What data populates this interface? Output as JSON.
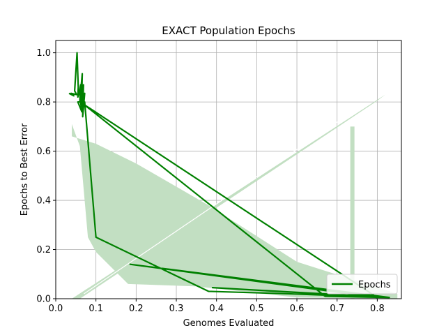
{
  "chart_data": {
    "type": "line",
    "title": "EXACT Population Epochs",
    "xlabel": "Genomes Evaluated",
    "ylabel": "Epochs to Best Error",
    "xlim": [
      0.0,
      0.86
    ],
    "ylim": [
      0.0,
      1.05
    ],
    "xticks": [
      "0.0",
      "0.1",
      "0.2",
      "0.3",
      "0.4",
      "0.5",
      "0.6",
      "0.7",
      "0.8"
    ],
    "yticks": [
      "0.0",
      "0.2",
      "0.4",
      "0.6",
      "0.8",
      "1.0"
    ],
    "grid": true,
    "legend": {
      "placement": "lower-right",
      "entries": [
        "Epochs"
      ]
    },
    "colors": {
      "line": "#008000",
      "band": "#c2dfc2",
      "grid": "#b0b0b0"
    },
    "series": [
      {
        "name": "Epochs",
        "x": [
          0.033,
          0.045,
          0.038,
          0.052,
          0.047,
          0.053,
          0.056,
          0.055,
          0.058,
          0.062,
          0.06,
          0.066,
          0.064,
          0.069,
          0.067,
          0.072,
          0.066,
          0.07,
          0.06,
          0.065,
          0.055,
          0.072,
          0.1,
          0.38,
          0.58,
          0.82,
          0.39,
          0.83,
          0.185,
          0.8,
          0.07,
          0.67,
          0.83
        ],
        "y": [
          0.835,
          0.825,
          0.835,
          0.83,
          0.845,
          1.0,
          0.86,
          0.82,
          0.835,
          0.87,
          0.805,
          0.915,
          0.78,
          0.87,
          0.74,
          0.835,
          0.8,
          0.8,
          0.82,
          0.76,
          0.8,
          0.8,
          0.25,
          0.03,
          0.02,
          0.005,
          0.045,
          0.005,
          0.14,
          0.005,
          0.79,
          0.01,
          0.005
        ]
      }
    ],
    "band": {
      "upper": [
        [
          0.04,
          0.71
        ],
        [
          0.04,
          0.66
        ],
        [
          0.1,
          0.63
        ],
        [
          0.2,
          0.55
        ],
        [
          0.38,
          0.38
        ],
        [
          0.6,
          0.15
        ],
        [
          0.85,
          0.02
        ]
      ],
      "lower": [
        [
          0.85,
          0.0
        ],
        [
          0.6,
          0.005
        ],
        [
          0.35,
          0.05
        ],
        [
          0.18,
          0.06
        ],
        [
          0.1,
          0.19
        ],
        [
          0.08,
          0.25
        ],
        [
          0.06,
          0.62
        ]
      ]
    },
    "diagonal_band": {
      "from": [
        0.04,
        0.0
      ],
      "to": [
        0.82,
        0.83
      ],
      "width": 0.025
    },
    "vertical_bar": {
      "x": 0.738,
      "y0": 0.0,
      "y1": 0.7
    }
  }
}
